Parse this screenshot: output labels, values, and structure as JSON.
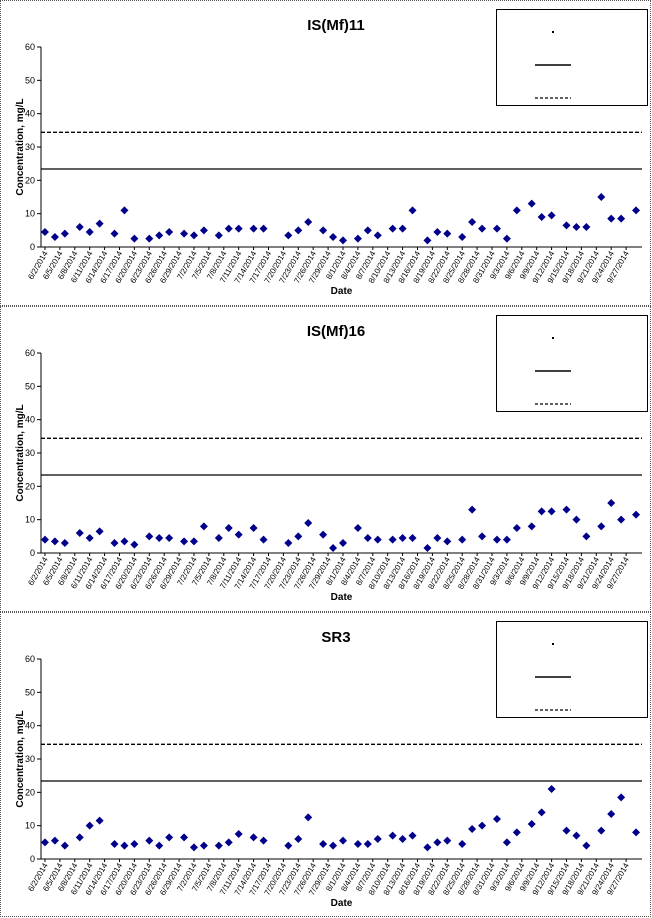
{
  "chart_data": [
    {
      "type": "scatter",
      "title": "IS(Mf)11",
      "xlabel": "Date",
      "ylabel": "Concentration, mg/L",
      "ylim": [
        0,
        60
      ],
      "yticks": [
        0,
        10,
        20,
        30,
        40,
        50,
        60
      ],
      "grid": false,
      "legend_position": "top-right",
      "xtick_labels": [
        "6/2/2014",
        "6/5/2014",
        "6/8/2014",
        "6/11/2014",
        "6/14/2014",
        "6/17/2014",
        "6/20/2014",
        "6/23/2014",
        "6/26/2014",
        "6/29/2014",
        "7/2/2014",
        "7/5/2014",
        "7/8/2014",
        "7/11/2014",
        "7/14/2014",
        "7/17/2014",
        "7/20/2014",
        "7/23/2014",
        "7/26/2014",
        "7/29/2014",
        "8/1/2014",
        "8/4/2014",
        "8/7/2014",
        "8/10/2014",
        "8/13/2014",
        "8/16/2014",
        "8/19/2014",
        "8/22/2014",
        "8/25/2014",
        "8/28/2014",
        "8/31/2014",
        "9/3/2014",
        "9/6/2014",
        "9/9/2014",
        "9/12/2014",
        "9/15/2014",
        "9/18/2014",
        "9/21/2014",
        "9/24/2014",
        "9/27/2014"
      ],
      "series": [
        {
          "marker": "diamond",
          "color": "#00008B",
          "points": [
            [
              "6/2/2014",
              4.5
            ],
            [
              "6/4/2014",
              3
            ],
            [
              "6/6/2014",
              4
            ],
            [
              "6/9/2014",
              6
            ],
            [
              "6/11/2014",
              4.5
            ],
            [
              "6/13/2014",
              7
            ],
            [
              "6/16/2014",
              4
            ],
            [
              "6/18/2014",
              11
            ],
            [
              "6/20/2014",
              2.5
            ],
            [
              "6/23/2014",
              2.5
            ],
            [
              "6/25/2014",
              3.5
            ],
            [
              "6/27/2014",
              4.5
            ],
            [
              "6/30/2014",
              4
            ],
            [
              "7/2/2014",
              3.5
            ],
            [
              "7/4/2014",
              5
            ],
            [
              "7/7/2014",
              3.5
            ],
            [
              "7/9/2014",
              5.5
            ],
            [
              "7/11/2014",
              5.5
            ],
            [
              "7/14/2014",
              5.5
            ],
            [
              "7/16/2014",
              5.5
            ],
            [
              "7/21/2014",
              3.5
            ],
            [
              "7/23/2014",
              5
            ],
            [
              "7/25/2014",
              7.5
            ],
            [
              "7/28/2014",
              5
            ],
            [
              "7/30/2014",
              3
            ],
            [
              "8/1/2014",
              2
            ],
            [
              "8/4/2014",
              2.5
            ],
            [
              "8/6/2014",
              5
            ],
            [
              "8/8/2014",
              3.5
            ],
            [
              "8/11/2014",
              5.5
            ],
            [
              "8/13/2014",
              5.5
            ],
            [
              "8/15/2014",
              11
            ],
            [
              "8/18/2014",
              2
            ],
            [
              "8/20/2014",
              4.5
            ],
            [
              "8/22/2014",
              4
            ],
            [
              "8/25/2014",
              3
            ],
            [
              "8/27/2014",
              7.5
            ],
            [
              "8/29/2014",
              5.5
            ],
            [
              "9/1/2014",
              5.5
            ],
            [
              "9/3/2014",
              2.5
            ],
            [
              "9/5/2014",
              11
            ],
            [
              "9/8/2014",
              13
            ],
            [
              "9/10/2014",
              9
            ],
            [
              "9/12/2014",
              9.5
            ],
            [
              "9/15/2014",
              6.5
            ],
            [
              "9/17/2014",
              6
            ],
            [
              "9/19/2014",
              6
            ],
            [
              "9/22/2014",
              15
            ],
            [
              "9/24/2014",
              8.5
            ],
            [
              "9/26/2014",
              8.5
            ],
            [
              "9/29/2014",
              11
            ]
          ]
        }
      ],
      "reference_lines": [
        {
          "style": "solid",
          "y": 23.4
        },
        {
          "style": "dashed",
          "y": 34.4
        }
      ]
    },
    {
      "type": "scatter",
      "title": "IS(Mf)16",
      "xlabel": "Date",
      "ylabel": "Concentration, mg/L",
      "ylim": [
        0,
        60
      ],
      "yticks": [
        0,
        10,
        20,
        30,
        40,
        50,
        60
      ],
      "grid": false,
      "legend_position": "top-right",
      "xtick_labels": [
        "6/2/2014",
        "6/5/2014",
        "6/8/2014",
        "6/11/2014",
        "6/14/2014",
        "6/17/2014",
        "6/20/2014",
        "6/23/2014",
        "6/26/2014",
        "6/29/2014",
        "7/2/2014",
        "7/5/2014",
        "7/8/2014",
        "7/11/2014",
        "7/14/2014",
        "7/17/2014",
        "7/20/2014",
        "7/23/2014",
        "7/26/2014",
        "7/29/2014",
        "8/1/2014",
        "8/4/2014",
        "8/7/2014",
        "8/10/2014",
        "8/13/2014",
        "8/16/2014",
        "8/19/2014",
        "8/22/2014",
        "8/25/2014",
        "8/28/2014",
        "8/31/2014",
        "9/3/2014",
        "9/6/2014",
        "9/9/2014",
        "9/12/2014",
        "9/15/2014",
        "9/18/2014",
        "9/21/2014",
        "9/24/2014",
        "9/27/2014"
      ],
      "series": [
        {
          "marker": "diamond",
          "color": "#00008B",
          "points": [
            [
              "6/2/2014",
              4
            ],
            [
              "6/4/2014",
              3.5
            ],
            [
              "6/6/2014",
              3
            ],
            [
              "6/9/2014",
              6
            ],
            [
              "6/11/2014",
              4.5
            ],
            [
              "6/13/2014",
              6.5
            ],
            [
              "6/16/2014",
              3
            ],
            [
              "6/18/2014",
              3.5
            ],
            [
              "6/20/2014",
              2.5
            ],
            [
              "6/23/2014",
              5
            ],
            [
              "6/25/2014",
              4.5
            ],
            [
              "6/27/2014",
              4.5
            ],
            [
              "6/30/2014",
              3.5
            ],
            [
              "7/2/2014",
              3.5
            ],
            [
              "7/4/2014",
              8
            ],
            [
              "7/7/2014",
              4.5
            ],
            [
              "7/9/2014",
              7.5
            ],
            [
              "7/11/2014",
              5.5
            ],
            [
              "7/14/2014",
              7.5
            ],
            [
              "7/16/2014",
              4
            ],
            [
              "7/21/2014",
              3
            ],
            [
              "7/23/2014",
              5
            ],
            [
              "7/25/2014",
              9
            ],
            [
              "7/28/2014",
              5.5
            ],
            [
              "7/30/2014",
              1.5
            ],
            [
              "8/1/2014",
              3
            ],
            [
              "8/4/2014",
              7.5
            ],
            [
              "8/6/2014",
              4.5
            ],
            [
              "8/8/2014",
              4
            ],
            [
              "8/11/2014",
              4
            ],
            [
              "8/13/2014",
              4.5
            ],
            [
              "8/15/2014",
              4.5
            ],
            [
              "8/18/2014",
              1.5
            ],
            [
              "8/20/2014",
              4.5
            ],
            [
              "8/22/2014",
              3.5
            ],
            [
              "8/25/2014",
              4
            ],
            [
              "8/27/2014",
              13
            ],
            [
              "8/29/2014",
              5
            ],
            [
              "9/1/2014",
              4
            ],
            [
              "9/3/2014",
              4
            ],
            [
              "9/5/2014",
              7.5
            ],
            [
              "9/8/2014",
              8
            ],
            [
              "9/10/2014",
              12.5
            ],
            [
              "9/12/2014",
              12.5
            ],
            [
              "9/15/2014",
              13
            ],
            [
              "9/17/2014",
              10
            ],
            [
              "9/19/2014",
              5
            ],
            [
              "9/22/2014",
              8
            ],
            [
              "9/24/2014",
              15
            ],
            [
              "9/26/2014",
              10
            ],
            [
              "9/29/2014",
              11.5
            ]
          ]
        }
      ],
      "reference_lines": [
        {
          "style": "solid",
          "y": 23.4
        },
        {
          "style": "dashed",
          "y": 34.4
        }
      ]
    },
    {
      "type": "scatter",
      "title": "SR3",
      "xlabel": "Date",
      "ylabel": "Concentration, mg/L",
      "ylim": [
        0,
        60
      ],
      "yticks": [
        0,
        10,
        20,
        30,
        40,
        50,
        60
      ],
      "grid": false,
      "legend_position": "top-right",
      "xtick_labels": [
        "6/2/2014",
        "6/5/2014",
        "6/8/2014",
        "6/11/2014",
        "6/14/2014",
        "6/17/2014",
        "6/20/2014",
        "6/23/2014",
        "6/26/2014",
        "6/29/2014",
        "7/2/2014",
        "7/5/2014",
        "7/8/2014",
        "7/11/2014",
        "7/14/2014",
        "7/17/2014",
        "7/20/2014",
        "7/23/2014",
        "7/26/2014",
        "7/29/2014",
        "8/1/2014",
        "8/4/2014",
        "8/7/2014",
        "8/10/2014",
        "8/13/2014",
        "8/16/2014",
        "8/19/2014",
        "8/22/2014",
        "8/25/2014",
        "8/28/2014",
        "8/31/2014",
        "9/3/2014",
        "9/6/2014",
        "9/9/2014",
        "9/12/2014",
        "9/15/2014",
        "9/18/2014",
        "9/21/2014",
        "9/24/2014",
        "9/27/2014"
      ],
      "series": [
        {
          "marker": "diamond",
          "color": "#00008B",
          "points": [
            [
              "6/2/2014",
              5
            ],
            [
              "6/4/2014",
              5.5
            ],
            [
              "6/6/2014",
              4
            ],
            [
              "6/9/2014",
              6.5
            ],
            [
              "6/11/2014",
              10
            ],
            [
              "6/13/2014",
              11.5
            ],
            [
              "6/16/2014",
              4.5
            ],
            [
              "6/18/2014",
              4
            ],
            [
              "6/20/2014",
              4.5
            ],
            [
              "6/23/2014",
              5.5
            ],
            [
              "6/25/2014",
              4
            ],
            [
              "6/27/2014",
              6.5
            ],
            [
              "6/30/2014",
              6.5
            ],
            [
              "7/2/2014",
              3.5
            ],
            [
              "7/4/2014",
              4
            ],
            [
              "7/7/2014",
              4
            ],
            [
              "7/9/2014",
              5
            ],
            [
              "7/11/2014",
              7.5
            ],
            [
              "7/14/2014",
              6.5
            ],
            [
              "7/16/2014",
              5.5
            ],
            [
              "7/21/2014",
              4
            ],
            [
              "7/23/2014",
              6
            ],
            [
              "7/25/2014",
              12.5
            ],
            [
              "7/28/2014",
              4.5
            ],
            [
              "7/30/2014",
              4
            ],
            [
              "8/1/2014",
              5.5
            ],
            [
              "8/4/2014",
              4.5
            ],
            [
              "8/6/2014",
              4.5
            ],
            [
              "8/8/2014",
              6
            ],
            [
              "8/11/2014",
              7
            ],
            [
              "8/13/2014",
              6
            ],
            [
              "8/15/2014",
              7
            ],
            [
              "8/18/2014",
              3.5
            ],
            [
              "8/20/2014",
              5
            ],
            [
              "8/22/2014",
              5.5
            ],
            [
              "8/25/2014",
              4.5
            ],
            [
              "8/27/2014",
              9
            ],
            [
              "8/29/2014",
              10
            ],
            [
              "9/1/2014",
              12
            ],
            [
              "9/3/2014",
              5
            ],
            [
              "9/5/2014",
              8
            ],
            [
              "9/8/2014",
              10.5
            ],
            [
              "9/10/2014",
              14
            ],
            [
              "9/12/2014",
              21
            ],
            [
              "9/15/2014",
              8.5
            ],
            [
              "9/17/2014",
              7
            ],
            [
              "9/19/2014",
              4
            ],
            [
              "9/22/2014",
              8.5
            ],
            [
              "9/24/2014",
              13.5
            ],
            [
              "9/26/2014",
              18.5
            ],
            [
              "9/29/2014",
              8
            ]
          ]
        }
      ],
      "reference_lines": [
        {
          "style": "solid",
          "y": 23.4
        },
        {
          "style": "dashed",
          "y": 34.4
        }
      ]
    }
  ]
}
